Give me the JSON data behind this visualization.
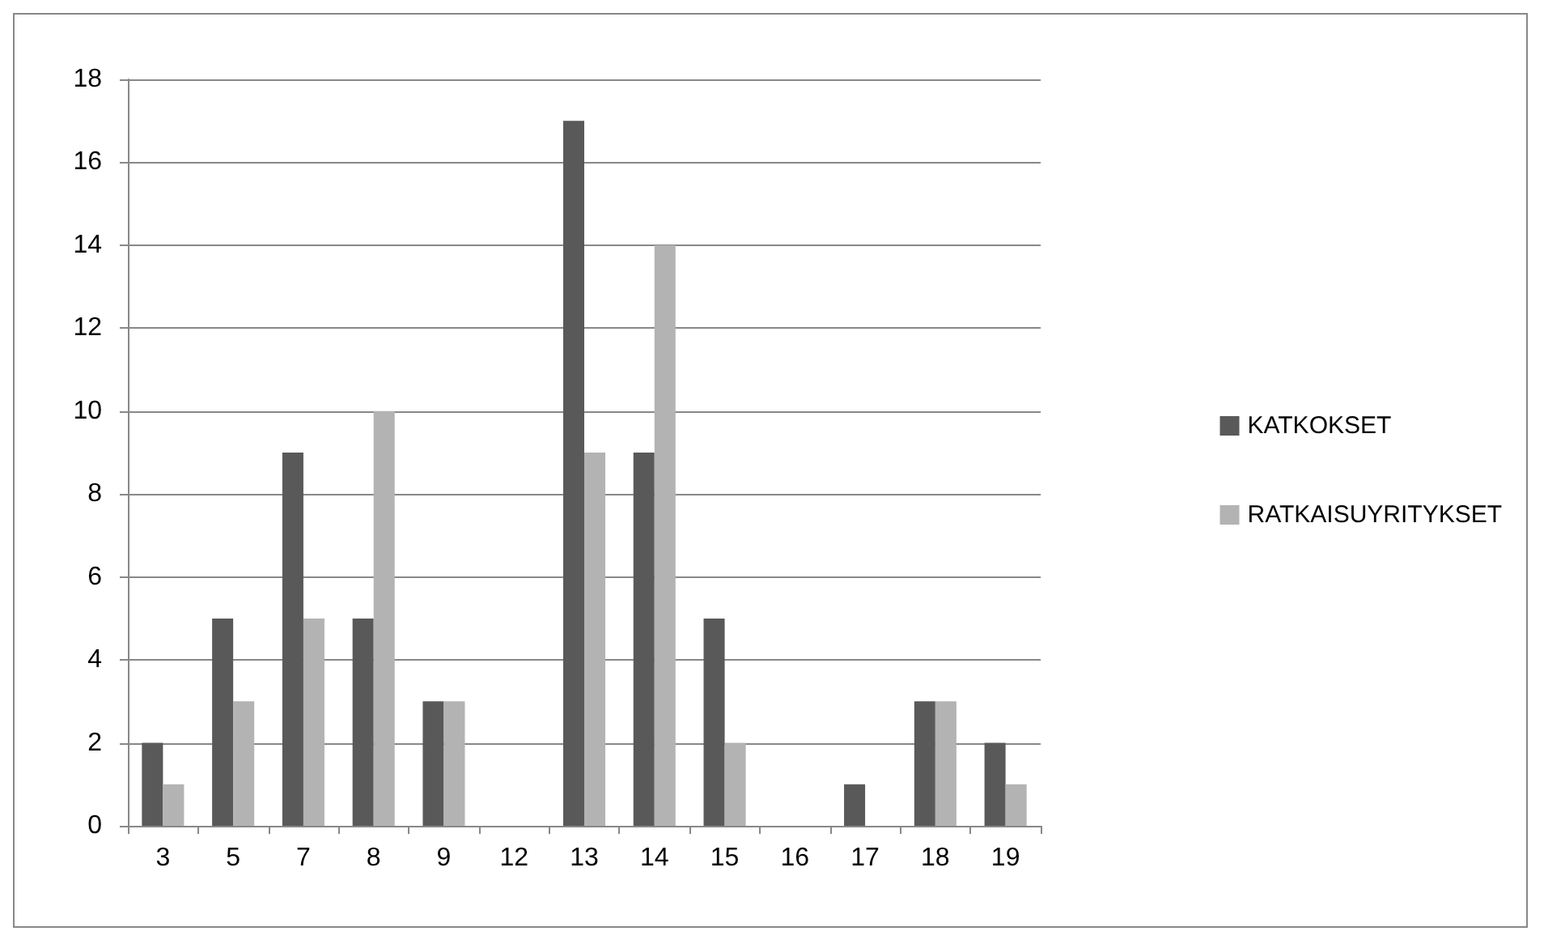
{
  "chart_data": {
    "type": "bar",
    "categories": [
      "3",
      "5",
      "7",
      "8",
      "9",
      "12",
      "13",
      "14",
      "15",
      "16",
      "17",
      "18",
      "19"
    ],
    "series": [
      {
        "name": "KATKOKSET",
        "color": "#595959",
        "values": [
          2,
          5,
          9,
          5,
          3,
          0,
          17,
          9,
          5,
          0,
          1,
          3,
          2
        ]
      },
      {
        "name": "RATKAISUYRITYKSET",
        "color": "#b3b3b3",
        "values": [
          1,
          3,
          5,
          10,
          3,
          0,
          9,
          14,
          2,
          0,
          0,
          3,
          1
        ]
      }
    ],
    "ylim": [
      0,
      18
    ],
    "yticks": [
      0,
      2,
      4,
      6,
      8,
      10,
      12,
      14,
      16,
      18
    ],
    "grid": "y",
    "legend": "right"
  }
}
